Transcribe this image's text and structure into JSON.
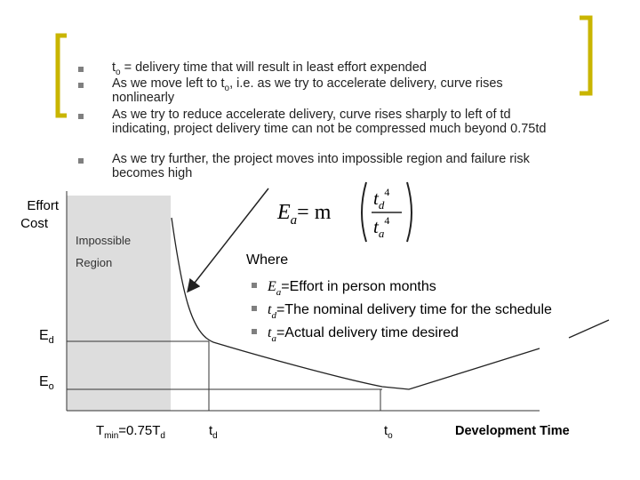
{
  "bullets": [
    [
      "t",
      "o",
      " = delivery time that will result in least effort expended"
    ],
    [
      "As we move left to t",
      "o",
      ", i.e. as we try to accelerate delivery, curve rises nonlinearly"
    ],
    [
      "As we try to reduce accelerate delivery, curve rises sharply to left of td indicating, project delivery time can not be compressed much beyond 0.75td"
    ],
    [
      "As we try further, the project moves into impossible region and failure risk becomes high"
    ]
  ],
  "diagram": {
    "y_label": [
      "Effort",
      "Cost"
    ],
    "region": [
      "Impossible",
      "Region"
    ],
    "formula": {
      "lhs": [
        "E",
        "a"
      ],
      "eq": "= m",
      "num": [
        "t",
        "d",
        "4"
      ],
      "den": [
        "t",
        "a",
        "4"
      ]
    },
    "where": "Where",
    "legend": [
      [
        "E",
        "a",
        "=Effort in person months"
      ],
      [
        "t",
        "d",
        "=The nominal delivery time for the schedule"
      ],
      [
        "t",
        "a",
        "=Actual delivery time desired"
      ]
    ],
    "y_ticks": [
      [
        "E",
        "d"
      ],
      [
        "E",
        "o"
      ]
    ],
    "x_ticks": [
      [
        "T",
        "min",
        "=0.75T",
        "d"
      ],
      [
        "t",
        "d"
      ],
      [
        "t",
        "o"
      ]
    ],
    "x_label": "Development Time"
  }
}
